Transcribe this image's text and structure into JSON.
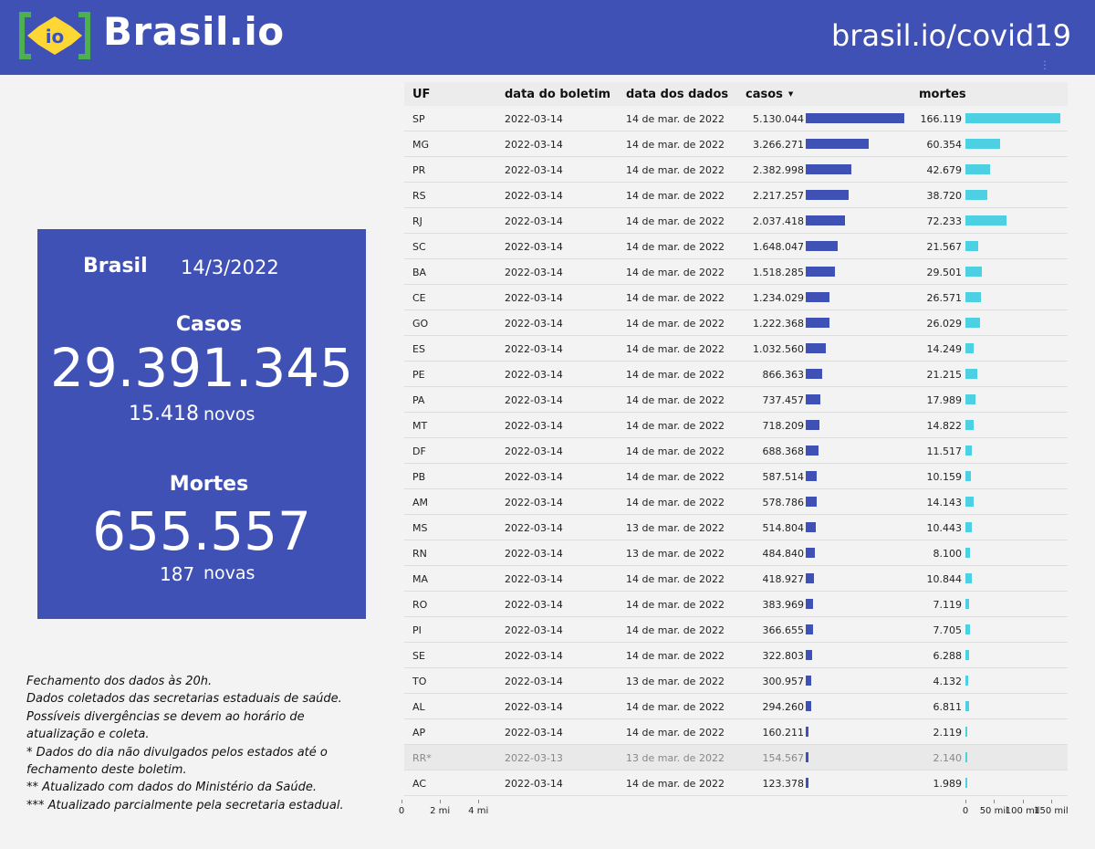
{
  "header": {
    "brand": "Brasil.io",
    "url": "brasil.io/covid19",
    "logo_text": "io",
    "colors": {
      "header_bg": "#3f51b5",
      "logo_green": "#4caf50",
      "logo_yellow": "#fdd835"
    }
  },
  "summary": {
    "region": "Brasil",
    "date": "14/3/2022",
    "cases_label": "Casos",
    "cases_total": "29.391.345",
    "cases_new": "15.418",
    "cases_new_label": "novos",
    "deaths_label": "Mortes",
    "deaths_total": "655.557",
    "deaths_new": "187",
    "deaths_new_label": "novas"
  },
  "notes": [
    "Fechamento dos dados às 20h.",
    "Dados coletados das secretarias estaduais de saúde.",
    "Possíveis divergências se devem ao horário de",
    "atualização e coleta.",
    "* Dados do dia não divulgados pelos estados até o",
    "fechamento deste boletim.",
    "** Atualizado com dados do Ministério da Saúde.",
    "*** Atualizado parcialmente pela secretaria estadual."
  ],
  "table": {
    "columns": [
      "UF",
      "data do boletim",
      "data dos dados",
      "casos",
      "mortes"
    ],
    "sort_icon": "sort-desc-icon",
    "bar_colors": {
      "casos": "#3f51b5",
      "mortes": "#4dd0e1"
    },
    "casos_axis": [
      {
        "value": 0,
        "label": "0"
      },
      {
        "value": 2000000,
        "label": "2 mi"
      },
      {
        "value": 4000000,
        "label": "4 mi"
      }
    ],
    "mortes_axis": [
      {
        "value": 0,
        "label": "0"
      },
      {
        "value": 50000,
        "label": "50 mil"
      },
      {
        "value": 100000,
        "label": "100 mil"
      },
      {
        "value": 150000,
        "label": "150 mil"
      }
    ],
    "rows": [
      {
        "uf": "SP",
        "boletim": "2022-03-14",
        "dados": "14 de mar. de 2022",
        "casos": "5.130.044",
        "casos_value": 5130044,
        "mortes": "166.119",
        "mortes_value": 166119
      },
      {
        "uf": "MG",
        "boletim": "2022-03-14",
        "dados": "14 de mar. de 2022",
        "casos": "3.266.271",
        "casos_value": 3266271,
        "mortes": "60.354",
        "mortes_value": 60354
      },
      {
        "uf": "PR",
        "boletim": "2022-03-14",
        "dados": "14 de mar. de 2022",
        "casos": "2.382.998",
        "casos_value": 2382998,
        "mortes": "42.679",
        "mortes_value": 42679
      },
      {
        "uf": "RS",
        "boletim": "2022-03-14",
        "dados": "14 de mar. de 2022",
        "casos": "2.217.257",
        "casos_value": 2217257,
        "mortes": "38.720",
        "mortes_value": 38720
      },
      {
        "uf": "RJ",
        "boletim": "2022-03-14",
        "dados": "14 de mar. de 2022",
        "casos": "2.037.418",
        "casos_value": 2037418,
        "mortes": "72.233",
        "mortes_value": 72233
      },
      {
        "uf": "SC",
        "boletim": "2022-03-14",
        "dados": "14 de mar. de 2022",
        "casos": "1.648.047",
        "casos_value": 1648047,
        "mortes": "21.567",
        "mortes_value": 21567
      },
      {
        "uf": "BA",
        "boletim": "2022-03-14",
        "dados": "14 de mar. de 2022",
        "casos": "1.518.285",
        "casos_value": 1518285,
        "mortes": "29.501",
        "mortes_value": 29501
      },
      {
        "uf": "CE",
        "boletim": "2022-03-14",
        "dados": "14 de mar. de 2022",
        "casos": "1.234.029",
        "casos_value": 1234029,
        "mortes": "26.571",
        "mortes_value": 26571
      },
      {
        "uf": "GO",
        "boletim": "2022-03-14",
        "dados": "14 de mar. de 2022",
        "casos": "1.222.368",
        "casos_value": 1222368,
        "mortes": "26.029",
        "mortes_value": 26029
      },
      {
        "uf": "ES",
        "boletim": "2022-03-14",
        "dados": "14 de mar. de 2022",
        "casos": "1.032.560",
        "casos_value": 1032560,
        "mortes": "14.249",
        "mortes_value": 14249
      },
      {
        "uf": "PE",
        "boletim": "2022-03-14",
        "dados": "14 de mar. de 2022",
        "casos": "866.363",
        "casos_value": 866363,
        "mortes": "21.215",
        "mortes_value": 21215
      },
      {
        "uf": "PA",
        "boletim": "2022-03-14",
        "dados": "14 de mar. de 2022",
        "casos": "737.457",
        "casos_value": 737457,
        "mortes": "17.989",
        "mortes_value": 17989
      },
      {
        "uf": "MT",
        "boletim": "2022-03-14",
        "dados": "14 de mar. de 2022",
        "casos": "718.209",
        "casos_value": 718209,
        "mortes": "14.822",
        "mortes_value": 14822
      },
      {
        "uf": "DF",
        "boletim": "2022-03-14",
        "dados": "14 de mar. de 2022",
        "casos": "688.368",
        "casos_value": 688368,
        "mortes": "11.517",
        "mortes_value": 11517
      },
      {
        "uf": "PB",
        "boletim": "2022-03-14",
        "dados": "14 de mar. de 2022",
        "casos": "587.514",
        "casos_value": 587514,
        "mortes": "10.159",
        "mortes_value": 10159
      },
      {
        "uf": "AM",
        "boletim": "2022-03-14",
        "dados": "14 de mar. de 2022",
        "casos": "578.786",
        "casos_value": 578786,
        "mortes": "14.143",
        "mortes_value": 14143
      },
      {
        "uf": "MS",
        "boletim": "2022-03-14",
        "dados": "13 de mar. de 2022",
        "casos": "514.804",
        "casos_value": 514804,
        "mortes": "10.443",
        "mortes_value": 10443
      },
      {
        "uf": "RN",
        "boletim": "2022-03-14",
        "dados": "13 de mar. de 2022",
        "casos": "484.840",
        "casos_value": 484840,
        "mortes": "8.100",
        "mortes_value": 8100
      },
      {
        "uf": "MA",
        "boletim": "2022-03-14",
        "dados": "14 de mar. de 2022",
        "casos": "418.927",
        "casos_value": 418927,
        "mortes": "10.844",
        "mortes_value": 10844
      },
      {
        "uf": "RO",
        "boletim": "2022-03-14",
        "dados": "14 de mar. de 2022",
        "casos": "383.969",
        "casos_value": 383969,
        "mortes": "7.119",
        "mortes_value": 7119
      },
      {
        "uf": "PI",
        "boletim": "2022-03-14",
        "dados": "14 de mar. de 2022",
        "casos": "366.655",
        "casos_value": 366655,
        "mortes": "7.705",
        "mortes_value": 7705
      },
      {
        "uf": "SE",
        "boletim": "2022-03-14",
        "dados": "14 de mar. de 2022",
        "casos": "322.803",
        "casos_value": 322803,
        "mortes": "6.288",
        "mortes_value": 6288
      },
      {
        "uf": "TO",
        "boletim": "2022-03-14",
        "dados": "13 de mar. de 2022",
        "casos": "300.957",
        "casos_value": 300957,
        "mortes": "4.132",
        "mortes_value": 4132
      },
      {
        "uf": "AL",
        "boletim": "2022-03-14",
        "dados": "14 de mar. de 2022",
        "casos": "294.260",
        "casos_value": 294260,
        "mortes": "6.811",
        "mortes_value": 6811
      },
      {
        "uf": "AP",
        "boletim": "2022-03-14",
        "dados": "14 de mar. de 2022",
        "casos": "160.211",
        "casos_value": 160211,
        "mortes": "2.119",
        "mortes_value": 2119
      },
      {
        "uf": "RR*",
        "boletim": "2022-03-13",
        "dados": "13 de mar. de 2022",
        "casos": "154.567",
        "casos_value": 154567,
        "mortes": "2.140",
        "mortes_value": 2140,
        "muted": true
      },
      {
        "uf": "AC",
        "boletim": "2022-03-14",
        "dados": "14 de mar. de 2022",
        "casos": "123.378",
        "casos_value": 123378,
        "mortes": "1.989",
        "mortes_value": 1989
      }
    ]
  }
}
